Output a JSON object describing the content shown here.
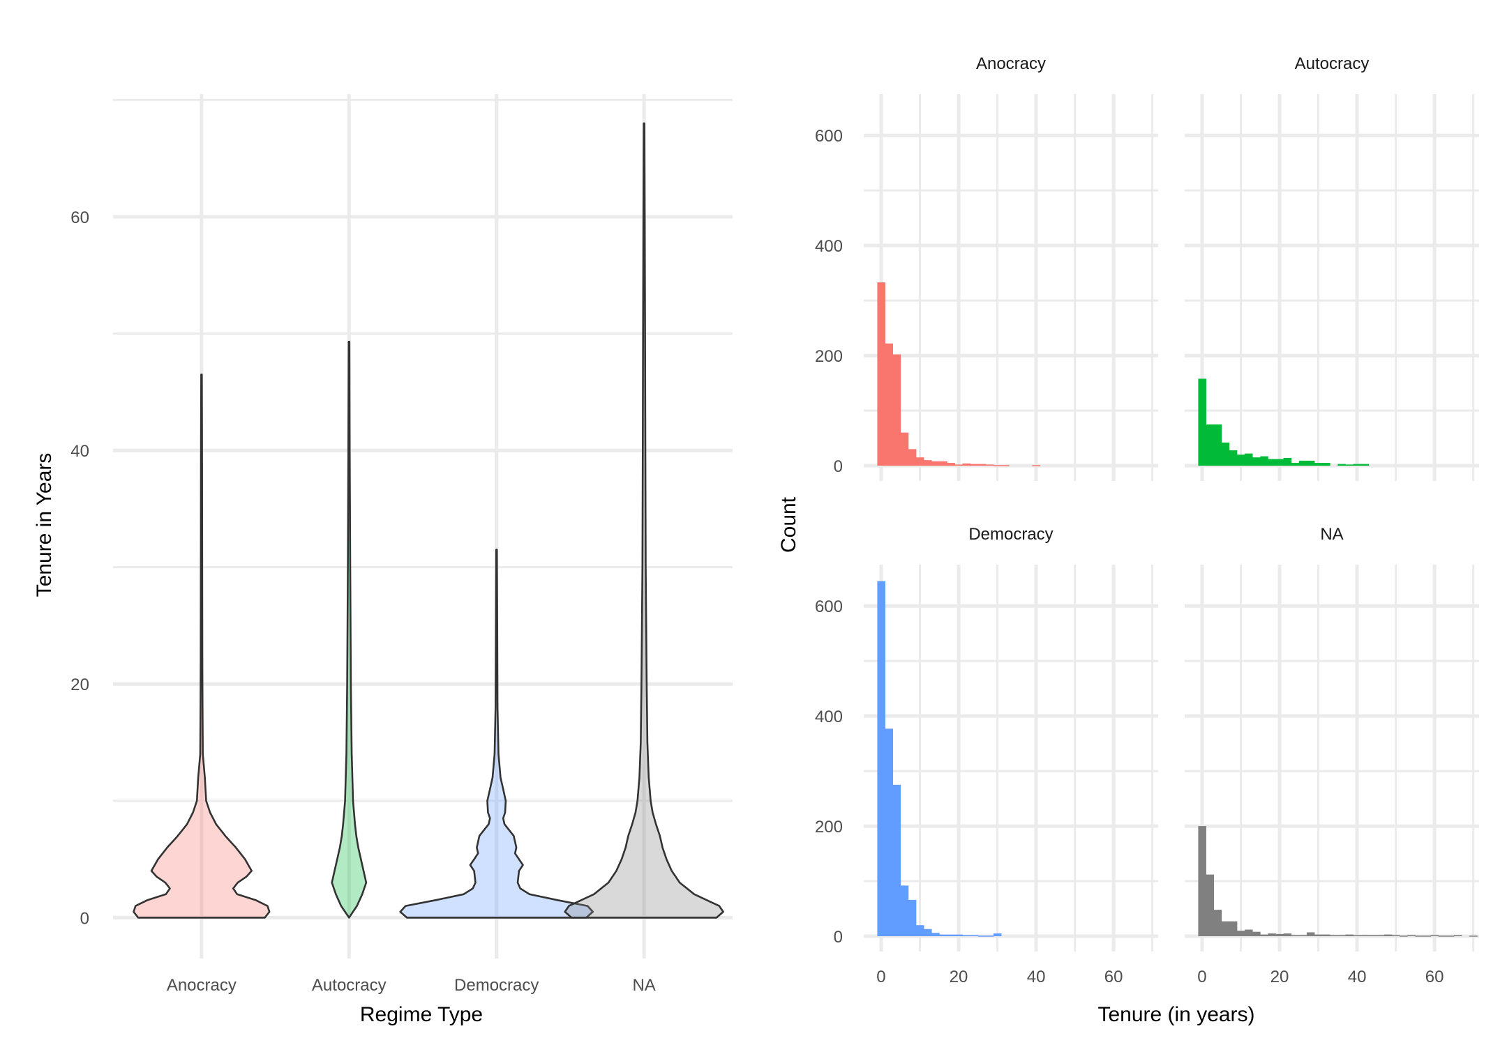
{
  "chart_data": [
    {
      "type": "violin",
      "xlabel": "Regime Type",
      "ylabel": "Tenure in Years",
      "categories": [
        "Anocracy",
        "Autocracy",
        "Democracy",
        "NA"
      ],
      "yticks": [
        0,
        20,
        40,
        60
      ],
      "ylim": [
        -3.5,
        70.5
      ],
      "grid": true,
      "colors": [
        "#F8766D",
        "#00BA38",
        "#619CFF",
        "#808080"
      ],
      "fill_opacity": 0.3,
      "max_tenure": [
        46.5,
        49.3,
        31.5,
        68
      ],
      "density_profiles": [
        [
          [
            0,
            0.96
          ],
          [
            0.5,
            1.03
          ],
          [
            1,
            1.0
          ],
          [
            1.5,
            0.82
          ],
          [
            2,
            0.54
          ],
          [
            2.5,
            0.48
          ],
          [
            3,
            0.55
          ],
          [
            3.5,
            0.68
          ],
          [
            4,
            0.76
          ],
          [
            5,
            0.66
          ],
          [
            6,
            0.52
          ],
          [
            7,
            0.36
          ],
          [
            8,
            0.22
          ],
          [
            9,
            0.13
          ],
          [
            10,
            0.07
          ],
          [
            12,
            0.05
          ],
          [
            14,
            0.02
          ],
          [
            18,
            0.015
          ],
          [
            22,
            0.012
          ],
          [
            30,
            0.01
          ],
          [
            40,
            0.008
          ],
          [
            46.5,
            0.005
          ]
        ],
        [
          [
            0,
            0.0
          ],
          [
            1,
            0.12
          ],
          [
            2,
            0.2
          ],
          [
            3,
            0.26
          ],
          [
            4,
            0.22
          ],
          [
            5,
            0.18
          ],
          [
            6,
            0.14
          ],
          [
            7,
            0.11
          ],
          [
            8,
            0.09
          ],
          [
            10,
            0.06
          ],
          [
            14,
            0.04
          ],
          [
            20,
            0.028
          ],
          [
            30,
            0.018
          ],
          [
            40,
            0.01
          ],
          [
            49.3,
            0.005
          ]
        ],
        [
          [
            0,
            1.36
          ],
          [
            0.5,
            1.46
          ],
          [
            1,
            1.38
          ],
          [
            1.5,
            0.92
          ],
          [
            2,
            0.5
          ],
          [
            2.5,
            0.36
          ],
          [
            3,
            0.32
          ],
          [
            4,
            0.34
          ],
          [
            4.5,
            0.4
          ],
          [
            5,
            0.34
          ],
          [
            5.5,
            0.28
          ],
          [
            6,
            0.3
          ],
          [
            7,
            0.26
          ],
          [
            8,
            0.12
          ],
          [
            8.5,
            0.1
          ],
          [
            9,
            0.13
          ],
          [
            10,
            0.14
          ],
          [
            11,
            0.1
          ],
          [
            12,
            0.06
          ],
          [
            14,
            0.03
          ],
          [
            18,
            0.015
          ],
          [
            25,
            0.01
          ],
          [
            31.5,
            0.005
          ]
        ],
        [
          [
            0,
            1.1
          ],
          [
            0.5,
            1.2
          ],
          [
            1,
            1.14
          ],
          [
            1.5,
            0.95
          ],
          [
            2,
            0.76
          ],
          [
            3,
            0.54
          ],
          [
            4,
            0.42
          ],
          [
            5,
            0.34
          ],
          [
            6,
            0.28
          ],
          [
            7,
            0.24
          ],
          [
            8,
            0.18
          ],
          [
            9,
            0.13
          ],
          [
            10,
            0.1
          ],
          [
            12,
            0.07
          ],
          [
            15,
            0.05
          ],
          [
            20,
            0.04
          ],
          [
            30,
            0.025
          ],
          [
            40,
            0.02
          ],
          [
            50,
            0.015
          ],
          [
            60,
            0.01
          ],
          [
            68,
            0.005
          ]
        ]
      ]
    },
    {
      "type": "histogram",
      "xlabel": "Tenure (in years)",
      "ylabel": "Count",
      "binwidth": 2,
      "first_bin_start": -1,
      "xticks": [
        0,
        20,
        40,
        60
      ],
      "yticks": [
        0,
        200,
        400,
        600
      ],
      "xlim": [
        -4.5,
        71.5
      ],
      "ylim": [
        0,
        675
      ],
      "grid": true,
      "series": [
        {
          "name": "Anocracy",
          "color": "#F8766D",
          "counts": [
            333,
            222,
            202,
            60,
            30,
            15,
            10,
            8,
            8,
            5,
            2,
            4,
            3,
            3,
            2,
            1,
            1,
            0,
            0,
            0,
            1
          ]
        },
        {
          "name": "Autocracy",
          "color": "#00BA38",
          "counts": [
            158,
            75,
            75,
            42,
            28,
            20,
            22,
            15,
            17,
            12,
            12,
            14,
            5,
            9,
            9,
            5,
            5,
            0,
            3,
            2,
            3,
            3
          ]
        },
        {
          "name": "Democracy",
          "color": "#619CFF",
          "counts": [
            645,
            377,
            275,
            92,
            66,
            20,
            13,
            6,
            3,
            3,
            3,
            2,
            2,
            1,
            1,
            5
          ]
        },
        {
          "name": "NA",
          "color": "#808080",
          "counts": [
            200,
            112,
            48,
            27,
            27,
            10,
            12,
            8,
            3,
            5,
            4,
            5,
            2,
            2,
            7,
            3,
            3,
            2,
            2,
            3,
            2,
            2,
            2,
            2,
            3,
            2,
            1,
            2,
            1,
            1,
            2,
            1,
            1,
            2,
            0,
            1
          ]
        }
      ]
    }
  ]
}
